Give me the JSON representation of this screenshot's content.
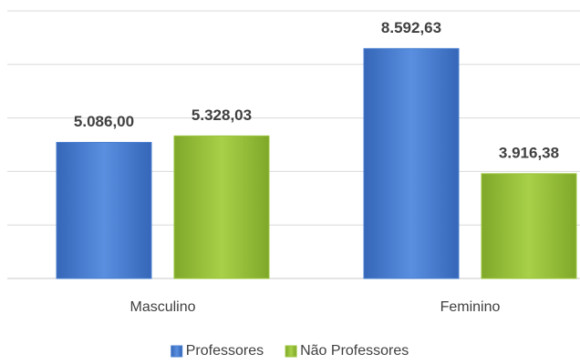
{
  "chart_data": {
    "type": "bar",
    "categories": [
      "Masculino",
      "Feminino"
    ],
    "series": [
      {
        "name": "Professores",
        "color": "#4a7fd0",
        "values": [
          5086.0,
          8592.63
        ],
        "value_labels": [
          "5.086,00",
          "8.592,63"
        ]
      },
      {
        "name": "Não Professores",
        "color": "#9bc43c",
        "values": [
          5328.03,
          3916.38
        ],
        "value_labels": [
          "5.328,03",
          "3.916,38"
        ]
      }
    ],
    "ylim": [
      0,
      10000
    ],
    "yticks": [
      0,
      2000,
      4000,
      6000,
      8000,
      10000
    ],
    "grid": true,
    "legend": "bottom"
  }
}
